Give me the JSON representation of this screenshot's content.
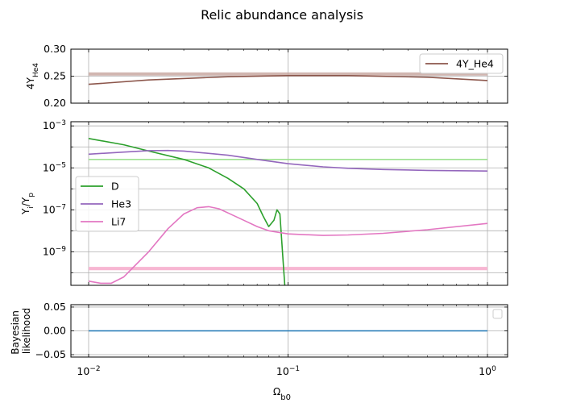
{
  "figure": {
    "title": "Relic abundance analysis",
    "xlabel_base": "Ω",
    "xlabel_sub": "b0"
  },
  "chart_data": [
    {
      "panel": "top",
      "type": "line",
      "xscale": "log",
      "xlim": [
        0.01,
        1.0
      ],
      "ylim": [
        0.2,
        0.3
      ],
      "yticks": [
        0.2,
        0.25,
        0.3
      ],
      "ytick_labels": [
        "0.20",
        "0.25",
        "0.30"
      ],
      "ylabel_base": "4Y",
      "ylabel_sub": "He4",
      "grid": true,
      "legend": {
        "placement": "top-right",
        "entries": [
          "4Y_He4"
        ]
      },
      "series": [
        {
          "name": "4Y_He4",
          "color": "#8c564b",
          "x": [
            0.01,
            0.02,
            0.05,
            0.1,
            0.2,
            0.5,
            1.0
          ],
          "y": [
            0.235,
            0.243,
            0.249,
            0.251,
            0.251,
            0.248,
            0.242
          ]
        }
      ],
      "observed_band": {
        "color": "#c5a49c",
        "y_low": 0.251,
        "y_high": 0.257
      }
    },
    {
      "panel": "middle",
      "type": "line",
      "xscale": "log",
      "yscale": "log",
      "xlim": [
        0.01,
        1.0
      ],
      "ylim_log10": [
        -10.6,
        -2.8
      ],
      "ytick_exponents": [
        -9,
        -7,
        -5,
        -3
      ],
      "ytick_base": "10",
      "ylabel_base": "Y",
      "ylabel_sub": "i",
      "ylabel_sep": "/Y",
      "ylabel_sub2": "p",
      "grid": true,
      "legend": {
        "placement": "center-left",
        "entries": [
          "D",
          "He3",
          "Li7"
        ]
      },
      "series": [
        {
          "name": "D",
          "color": "#2ca02c",
          "x": [
            0.01,
            0.015,
            0.02,
            0.03,
            0.04,
            0.05,
            0.06,
            0.07,
            0.075,
            0.08,
            0.085,
            0.088,
            0.091,
            0.093,
            0.095,
            0.097
          ],
          "y_log10": [
            -3.6,
            -3.9,
            -4.2,
            -4.6,
            -5.0,
            -5.5,
            -6.0,
            -6.7,
            -7.3,
            -7.8,
            -7.5,
            -7.0,
            -7.2,
            -8.5,
            -9.8,
            -11.0
          ]
        },
        {
          "name": "He3",
          "color": "#9467bd",
          "x": [
            0.01,
            0.015,
            0.02,
            0.025,
            0.03,
            0.05,
            0.07,
            0.1,
            0.15,
            0.2,
            0.3,
            0.5,
            1.0
          ],
          "y_log10": [
            -4.35,
            -4.25,
            -4.18,
            -4.17,
            -4.2,
            -4.4,
            -4.6,
            -4.8,
            -4.95,
            -5.02,
            -5.08,
            -5.12,
            -5.15
          ]
        },
        {
          "name": "Li7",
          "color": "#e377c2",
          "x": [
            0.01,
            0.0115,
            0.013,
            0.015,
            0.02,
            0.025,
            0.03,
            0.035,
            0.04,
            0.045,
            0.05,
            0.06,
            0.07,
            0.08,
            0.1,
            0.15,
            0.2,
            0.3,
            0.5,
            1.0
          ],
          "y_log10": [
            -10.4,
            -10.5,
            -10.5,
            -10.2,
            -9.0,
            -7.9,
            -7.2,
            -6.9,
            -6.85,
            -6.95,
            -7.15,
            -7.5,
            -7.8,
            -8.0,
            -8.15,
            -8.22,
            -8.2,
            -8.12,
            -7.95,
            -7.65
          ]
        }
      ],
      "observed_bands": [
        {
          "name": "D",
          "color": "#98df8a",
          "y_log10": -4.6,
          "half_width": 0.03
        },
        {
          "name": "Li7",
          "color": "#f7b6d2",
          "y_log10": -9.8,
          "half_width": 0.08
        }
      ]
    },
    {
      "panel": "bottom",
      "type": "line",
      "xscale": "log",
      "xlim": [
        0.01,
        1.0
      ],
      "xtick_exponents": [
        -2,
        -1,
        0
      ],
      "xtick_base": "10",
      "ylim": [
        -0.055,
        0.055
      ],
      "yticks": [
        -0.05,
        0.0,
        0.05
      ],
      "ytick_labels": [
        "−0.05",
        "0.00",
        "0.05"
      ],
      "ylabel_line1": "Bayesian",
      "ylabel_line2": "likelihood",
      "grid": true,
      "legend": {
        "placement": "top-right",
        "entries": []
      },
      "series": [
        {
          "color": "#1f77b4",
          "x": [
            0.01,
            1.0
          ],
          "y": [
            0.0,
            0.0
          ]
        }
      ]
    }
  ]
}
